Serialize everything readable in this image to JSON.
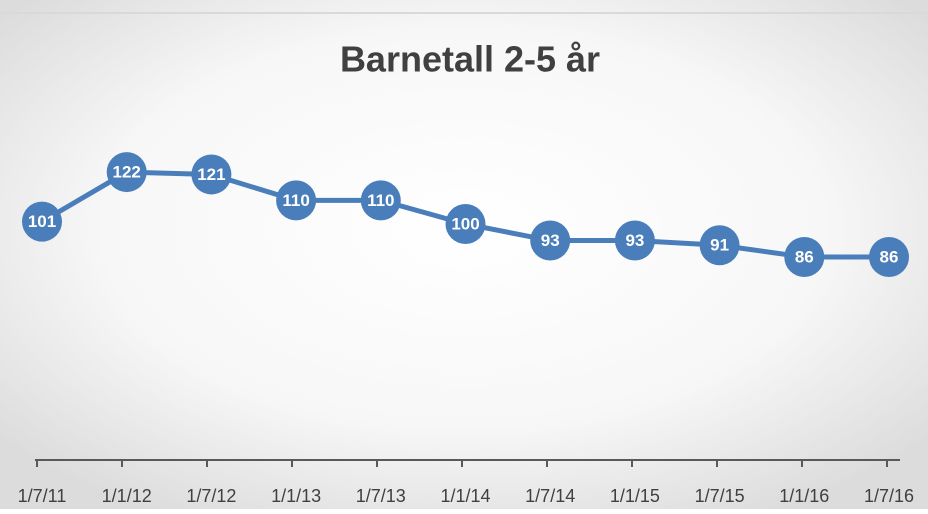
{
  "chart_data": {
    "type": "line",
    "title": "Barnetall 2-5 år",
    "categories": [
      "1/7/11",
      "1/1/12",
      "1/7/12",
      "1/1/13",
      "1/7/13",
      "1/1/14",
      "1/7/14",
      "1/1/15",
      "1/7/15",
      "1/1/16",
      "1/7/16"
    ],
    "values": [
      101,
      122,
      121,
      110,
      110,
      100,
      93,
      93,
      91,
      86,
      86
    ],
    "color": "#4a7ebb"
  }
}
